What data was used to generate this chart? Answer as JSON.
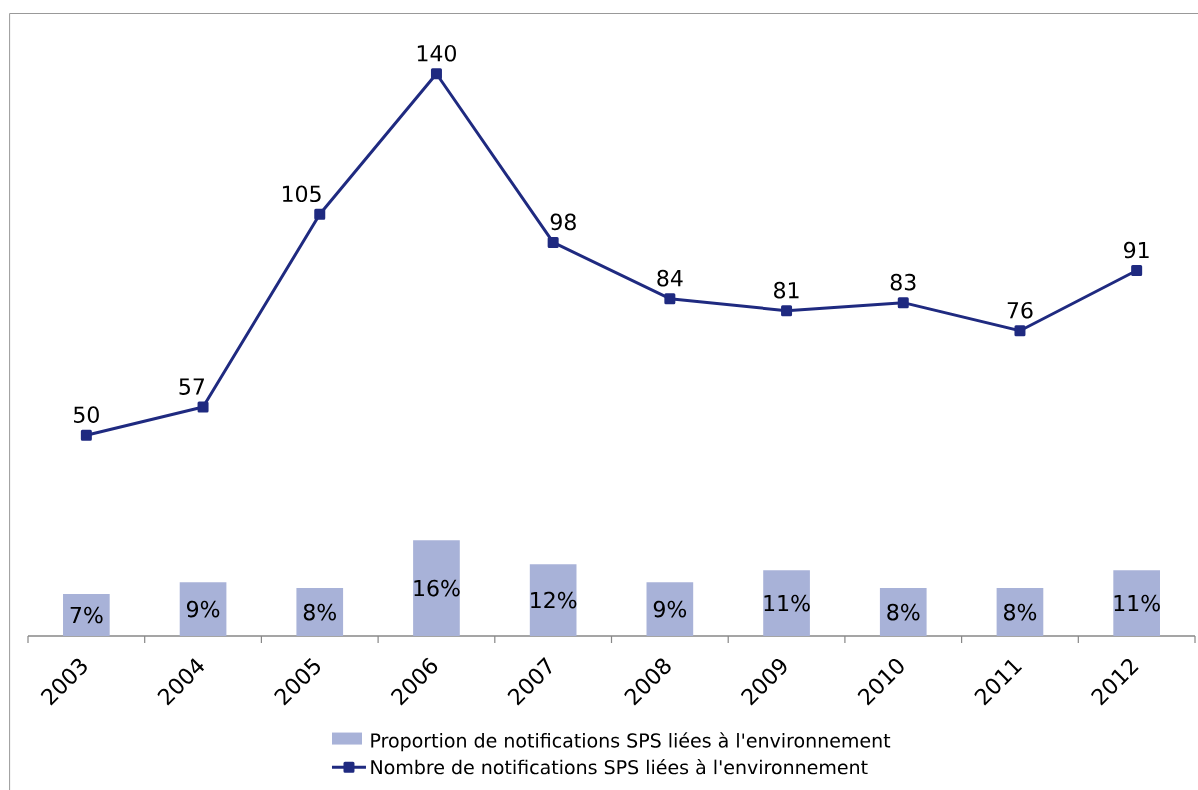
{
  "chart_data": {
    "type": "bar",
    "categories": [
      "2003",
      "2004",
      "2005",
      "2006",
      "2007",
      "2008",
      "2009",
      "2010",
      "2011",
      "2012"
    ],
    "series": [
      {
        "name": "Proportion de notifications SPS liées à l'environnement",
        "axis": "y2",
        "color": "#a8b2d8",
        "values": [
          7,
          9,
          8,
          16,
          12,
          9,
          11,
          8,
          8,
          11
        ],
        "value_labels": [
          "7%",
          "9%",
          "8%",
          "16%",
          "12%",
          "9%",
          "11%",
          "8%",
          "8%",
          "11%"
        ]
      },
      {
        "name": "Nombre de notifications SPS liées à l'environnement",
        "type": "line",
        "color": "#1f2a80",
        "values": [
          50,
          57,
          105,
          140,
          98,
          84,
          81,
          83,
          76,
          91
        ],
        "value_labels": [
          "50",
          "57",
          "105",
          "140",
          "98",
          "84",
          "81",
          "83",
          "76",
          "91"
        ]
      }
    ],
    "ylim": [
      0,
      155
    ],
    "y2lim": [
      0,
      104
    ],
    "tick_labels": "x",
    "legend": "bottom",
    "marker": "square"
  }
}
